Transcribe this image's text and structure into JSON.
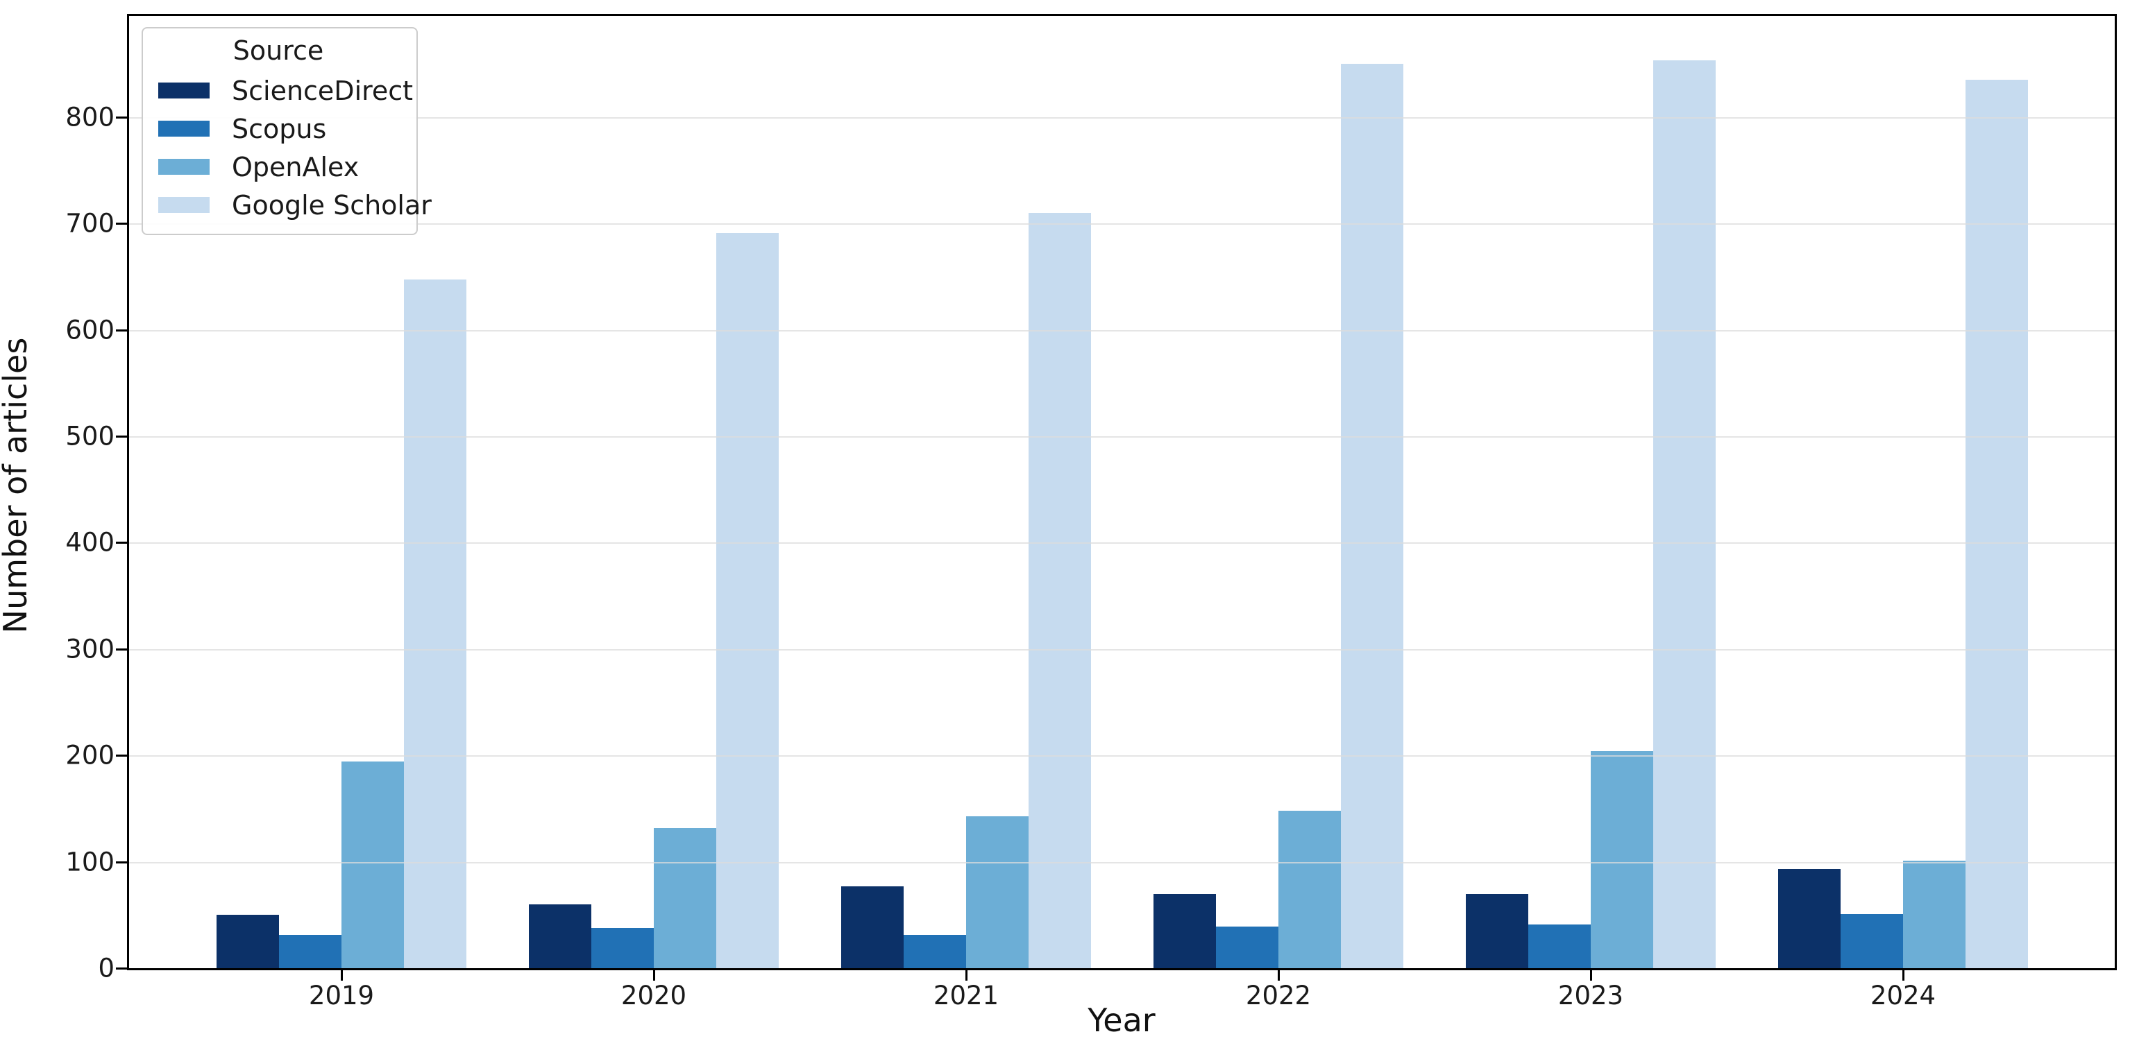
{
  "chart_data": {
    "type": "bar",
    "title": "",
    "xlabel": "Year",
    "ylabel": "Number of articles",
    "categories": [
      "2019",
      "2020",
      "2021",
      "2022",
      "2023",
      "2024"
    ],
    "series": [
      {
        "name": "ScienceDirect",
        "color": "#0c3168",
        "values": [
          50,
          60,
          77,
          70,
          70,
          93
        ]
      },
      {
        "name": "Scopus",
        "color": "#2171b5",
        "values": [
          31,
          38,
          31,
          39,
          41,
          51
        ]
      },
      {
        "name": "OpenAlex",
        "color": "#6caed6",
        "values": [
          194,
          132,
          143,
          148,
          204,
          101
        ]
      },
      {
        "name": "Google Scholar",
        "color": "#c6dbef",
        "values": [
          647,
          691,
          710,
          850,
          853,
          835
        ]
      }
    ],
    "ylim": [
      0,
      895
    ],
    "yticks": [
      0,
      100,
      200,
      300,
      400,
      500,
      600,
      700,
      800
    ],
    "grid": "horizontal",
    "gridline_color": "#dcdcdc",
    "legend_title": "Source",
    "legend_position": "upper-left",
    "axis_color": "#000000"
  }
}
